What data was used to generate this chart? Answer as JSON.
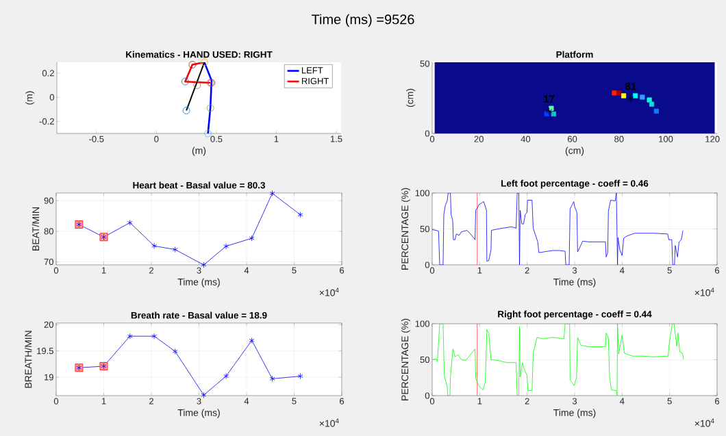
{
  "chart_data": [
    {
      "type": "line",
      "title": "Kinematics - HAND USED: RIGHT",
      "xlabel": "(m)",
      "ylabel": "(m)",
      "xlim": [
        -0.83,
        1.54
      ],
      "ylim": [
        -0.3,
        0.29
      ],
      "xticks": [
        -0.5,
        0,
        0.5,
        1,
        1.5
      ],
      "yticks": [
        -0.2,
        0,
        0.2
      ],
      "legend": "top right",
      "annotations": [
        "Time (ms) =9526"
      ],
      "series": [
        {
          "name": "LEFT",
          "color": "#0000ff",
          "x": [
            0.4,
            0.46,
            0.45,
            0.43
          ],
          "values": [
            0.29,
            0.14,
            -0.09,
            -0.3
          ]
        },
        {
          "name": "RIGHT",
          "color": "#ff0000",
          "x": [
            0.4,
            0.3,
            0.24,
            0.45
          ],
          "values": [
            0.29,
            0.27,
            0.13,
            0.12
          ]
        },
        {
          "color": "#000000",
          "x": [
            0.4,
            0.25
          ],
          "values": [
            0.29,
            -0.11
          ]
        },
        {
          "type": "scatter",
          "marker": "circle",
          "x": [
            0.4,
            0.3,
            0.24,
            0.34,
            0.45,
            0.46,
            0.45,
            0.43,
            0.25
          ],
          "values": [
            0.29,
            0.27,
            0.13,
            0.1,
            0.12,
            0.12,
            -0.09,
            -0.3,
            -0.11
          ],
          "colors": [
            "#edb120",
            "#a2142f",
            "#0072bd",
            "#d95319",
            "#d95319",
            "#7e2f8e",
            "#77ac30",
            "#4dbeee",
            "#0072bd"
          ]
        }
      ]
    },
    {
      "type": "scatter",
      "title": "Platform",
      "xlabel": "(cm)",
      "ylabel": "(cm)",
      "xlim": [
        0,
        122
      ],
      "ylim": [
        0,
        51
      ],
      "xticks": [
        0,
        20,
        40,
        60,
        80,
        100,
        120
      ],
      "yticks": [
        0,
        50
      ],
      "bands": [
        {
          "axis": "x",
          "from": 1,
          "to": 121,
          "color": "#0a0a8c"
        }
      ],
      "annotations": [
        {
          "text": "17",
          "x": 50,
          "y": 16
        },
        {
          "text": "81",
          "x": 85,
          "y": 25
        }
      ],
      "series": [
        {
          "marker": "square",
          "x": [
            78,
            80,
            82,
            87,
            90,
            93,
            94,
            96,
            51,
            52,
            49
          ],
          "values": [
            29,
            29,
            27,
            27,
            26,
            24,
            21,
            16,
            18,
            14,
            14
          ],
          "colors": [
            "#ff2000",
            "#a00000",
            "#ffff00",
            "#00ffff",
            "#30a0ff",
            "#00ffd0",
            "#20d0e0",
            "#0080ff",
            "#60ff90",
            "#00d0c0",
            "#0040ff"
          ]
        },
        {
          "marker": "cross",
          "color": "#000000",
          "x": [
            50,
            85
          ],
          "values": [
            16,
            25
          ]
        }
      ]
    },
    {
      "type": "line",
      "title": "Heart beat - Basal value = 80.3",
      "xlabel": "Time (ms)",
      "ylabel": "BEAT/MIN",
      "xlim": [
        0,
        6
      ],
      "ylim": [
        69,
        92.5
      ],
      "xticks": [
        0,
        1,
        2,
        3,
        4,
        5,
        6
      ],
      "yticks": [
        70,
        80,
        90
      ],
      "grid": true,
      "annotations": [
        "×10$^{4}$"
      ],
      "series": [
        {
          "type": "scatter",
          "marker": "square",
          "color": "#ff0000",
          "x": [
            0.48,
            1.0
          ],
          "values": [
            82.2,
            78.1
          ]
        },
        {
          "marker": "cross",
          "color": "#0000ff",
          "x": [
            0.48,
            1.0,
            1.55,
            2.06,
            2.5,
            3.1,
            3.57,
            4.11,
            4.54,
            5.13
          ],
          "values": [
            82.2,
            78.1,
            82.8,
            75.2,
            74.0,
            69.0,
            75.1,
            77.7,
            92.4,
            85.4
          ]
        }
      ]
    },
    {
      "type": "line",
      "title": "Left foot percentage - coeff =  0.46",
      "xlabel": "Time (ms)",
      "ylabel": "PERCENTAGE (%)",
      "xlim": [
        0,
        6
      ],
      "ylim": [
        0,
        100
      ],
      "xticks": [
        0,
        1,
        2,
        3,
        4,
        5,
        6
      ],
      "yticks": [
        0,
        50,
        100
      ],
      "grid": true,
      "annotations": [
        "×10$^{4}$"
      ],
      "ref_lines": [
        {
          "axis": "x",
          "value": 0.95,
          "color": "#ff0000"
        }
      ],
      "series": [
        {
          "color": "#0000ff",
          "x": [
            0,
            0.086,
            0.134,
            0.158,
            0.23,
            0.245,
            0.278,
            0.317,
            0.336,
            0.384,
            0.398,
            0.432,
            0.446,
            0.48,
            0.509,
            0.566,
            0.615,
            0.735,
            0.807,
            0.903,
            0.917,
            0.95,
            0.989,
            1.085,
            1.143,
            1.152,
            1.191,
            1.239,
            1.248,
            1.311,
            1.479,
            1.671,
            1.767,
            1.791,
            1.824,
            1.839,
            1.853,
            1.887,
            1.925,
            1.959,
            1.997,
            2.007,
            2.103,
            2.127,
            2.223,
            2.247,
            2.343,
            2.535,
            2.679,
            2.799,
            2.813,
            2.885,
            2.904,
            2.943,
            2.981,
            3.0,
            3.048,
            3.063,
            3.087,
            3.169,
            3.303,
            3.495,
            3.649,
            3.663,
            3.697,
            3.711,
            3.759,
            3.855,
            3.879,
            3.903,
            3.913,
            3.951,
            3.999,
            4.033,
            4.095,
            4.263,
            4.455,
            4.671,
            4.959,
            4.983,
            5.046,
            5.065,
            5.103,
            5.118,
            5.166,
            5.199,
            5.247,
            5.281
          ],
          "values": [
            49,
            48,
            47,
            0,
            0,
            70,
            83,
            89,
            100,
            100,
            70,
            62,
            35,
            35,
            43,
            41,
            46,
            48,
            43,
            35,
            76,
            79,
            84,
            88,
            76,
            5,
            6,
            21,
            48,
            49,
            51,
            53,
            51,
            100,
            100,
            0,
            76,
            57,
            57,
            70,
            73,
            90,
            90,
            51,
            32,
            17,
            18,
            20,
            20,
            19,
            0,
            0,
            78,
            83,
            88,
            81,
            73,
            18,
            21,
            33,
            32,
            32,
            32,
            11,
            17,
            75,
            90,
            89,
            100,
            0,
            38,
            21,
            13,
            37,
            40,
            44,
            44,
            44,
            43,
            35,
            35,
            0,
            0,
            27,
            11,
            32,
            35,
            48
          ]
        }
      ]
    },
    {
      "type": "line",
      "title": "Breath rate - Basal value = 18.9",
      "xlabel": "Time (ms)",
      "ylabel": "BREATH/MIN",
      "xlim": [
        0,
        6
      ],
      "ylim": [
        18.65,
        20.03
      ],
      "xticks": [
        0,
        1,
        2,
        3,
        4,
        5,
        6
      ],
      "yticks": [
        19,
        19.5,
        20
      ],
      "grid": true,
      "annotations": [
        "×10$^{4}$"
      ],
      "series": [
        {
          "type": "scatter",
          "marker": "square",
          "color": "#ff0000",
          "x": [
            0.48,
            1.0
          ],
          "values": [
            19.18,
            19.21
          ]
        },
        {
          "marker": "cross",
          "color": "#0000ff",
          "x": [
            0.48,
            1.0,
            1.55,
            2.06,
            2.5,
            3.1,
            3.57,
            4.11,
            4.54,
            5.13
          ],
          "values": [
            19.18,
            19.21,
            19.78,
            19.78,
            19.49,
            18.66,
            19.02,
            19.7,
            18.97,
            19.02
          ]
        }
      ]
    },
    {
      "type": "line",
      "title": "Right foot percentage - coeff =  0.44",
      "xlabel": "Time (ms)",
      "ylabel": "PERCENTAGE (%)",
      "xlim": [
        0,
        6
      ],
      "ylim": [
        0,
        100
      ],
      "xticks": [
        0,
        1,
        2,
        3,
        4,
        5,
        6
      ],
      "yticks": [
        0,
        50,
        100
      ],
      "grid": true,
      "annotations": [
        "×10$^{4}$"
      ],
      "ref_lines": [
        {
          "axis": "x",
          "value": 0.95,
          "color": "#ff0000"
        }
      ],
      "series": [
        {
          "color": "#00ff00",
          "x": [
            0,
            0.086,
            0.11,
            0.158,
            0.23,
            0.254,
            0.317,
            0.326,
            0.374,
            0.384,
            0.437,
            0.48,
            0.542,
            0.615,
            0.711,
            0.783,
            0.903,
            0.917,
            0.975,
            1.071,
            1.119,
            1.152,
            1.191,
            1.239,
            1.383,
            1.575,
            1.767,
            1.791,
            1.824,
            1.839,
            1.853,
            1.901,
            1.949,
            1.997,
            2.017,
            2.103,
            2.127,
            2.208,
            2.343,
            2.535,
            2.775,
            2.799,
            2.895,
            2.904,
            2.991,
            3.039,
            3.063,
            3.135,
            3.303,
            3.495,
            3.649,
            3.663,
            3.711,
            3.735,
            3.773,
            3.879,
            3.894,
            3.903,
            3.927,
            3.999,
            4.047,
            4.215,
            4.455,
            4.647,
            4.969,
            4.983,
            5.055,
            5.094,
            5.151,
            5.175,
            5.213,
            5.271,
            5.295
          ],
          "values": [
            50,
            51,
            47,
            100,
            100,
            28,
            12,
            0,
            0,
            25,
            65,
            54,
            57,
            50,
            49,
            55,
            65,
            24,
            14,
            8,
            19,
            92,
            86,
            50,
            49,
            46,
            46,
            0,
            0,
            96,
            26,
            46,
            35,
            28,
            7,
            7,
            59,
            81,
            79,
            81,
            79,
            100,
            100,
            22,
            14,
            25,
            81,
            70,
            68,
            68,
            68,
            87,
            80,
            27,
            8,
            7,
            0,
            100,
            58,
            84,
            59,
            55,
            55,
            54,
            55,
            67,
            100,
            100,
            69,
            87,
            61,
            59,
            50
          ]
        }
      ]
    }
  ]
}
